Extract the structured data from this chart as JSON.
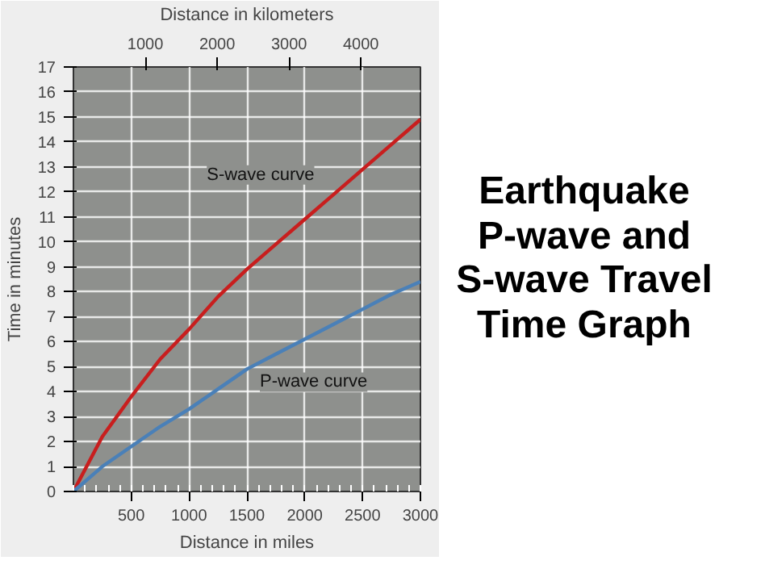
{
  "chart_data": {
    "type": "line",
    "title": "Earthquake P-wave and S-wave Travel Time Graph",
    "xlabel": "Distance in miles",
    "ylabel": "Time in minutes",
    "x2label": "Distance in kilometers",
    "xlim": [
      0,
      3000
    ],
    "xticks": [
      500,
      1000,
      1500,
      2000,
      2500,
      3000
    ],
    "x2lim": [
      0,
      4828
    ],
    "x2ticks": [
      1000,
      2000,
      3000,
      4000
    ],
    "ylim": [
      0,
      17
    ],
    "yticks": [
      0,
      1,
      2,
      3,
      4,
      5,
      6,
      7,
      8,
      9,
      10,
      11,
      12,
      13,
      14,
      15,
      16,
      17
    ],
    "grid": true,
    "x": [
      0,
      250,
      500,
      750,
      1000,
      1250,
      1500,
      1750,
      2000,
      2250,
      2500,
      2750,
      3000
    ],
    "series": [
      {
        "name": "S-wave curve",
        "color": "#c81e1e",
        "values": [
          0,
          2.2,
          3.8,
          5.3,
          6.5,
          7.8,
          8.9,
          9.9,
          10.9,
          11.9,
          12.9,
          13.9,
          14.9
        ]
      },
      {
        "name": "P-wave curve",
        "color": "#4a80b8",
        "values": [
          0,
          1.0,
          1.8,
          2.6,
          3.3,
          4.1,
          4.9,
          5.5,
          6.1,
          6.7,
          7.3,
          7.9,
          8.4
        ]
      }
    ]
  }
}
